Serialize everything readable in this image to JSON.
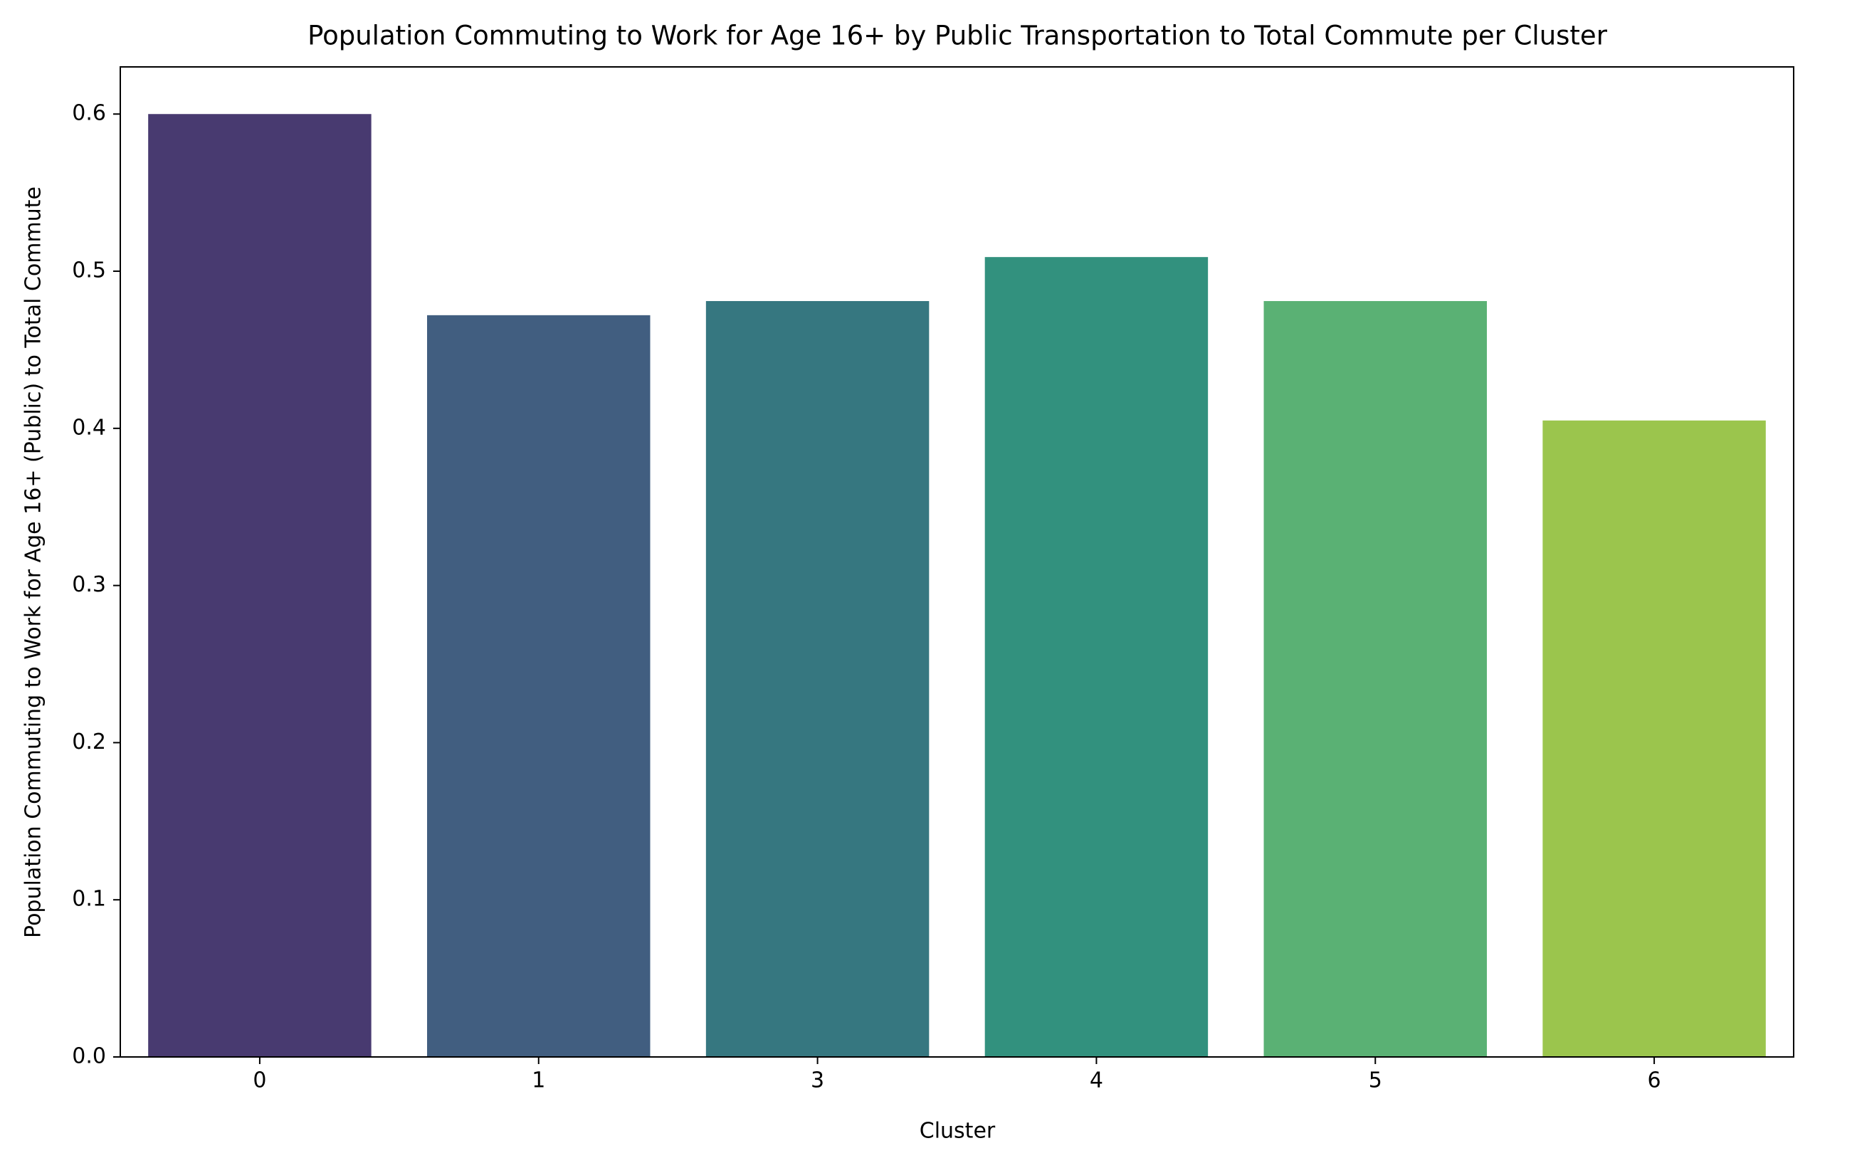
{
  "chart_data": {
    "type": "bar",
    "title": "Population Commuting to Work for Age 16+ by Public Transportation to Total Commute per Cluster",
    "x_label": "Cluster",
    "y_label": "Population Commuting to Work for Age 16+ (Public) to Total Commute",
    "categories": [
      "0",
      "1",
      "3",
      "4",
      "5",
      "6"
    ],
    "values": [
      0.6,
      0.472,
      0.481,
      0.509,
      0.481,
      0.405
    ],
    "colors": [
      "#483a70",
      "#415e80",
      "#367780",
      "#32917e",
      "#5ab174",
      "#9bc54d"
    ],
    "ylim": [
      0,
      0.63
    ],
    "yticks": [
      {
        "value": 0,
        "label": "0.0"
      },
      0.1,
      0.2,
      0.3,
      0.4,
      0.5,
      0.6
    ],
    "grid": false
  }
}
